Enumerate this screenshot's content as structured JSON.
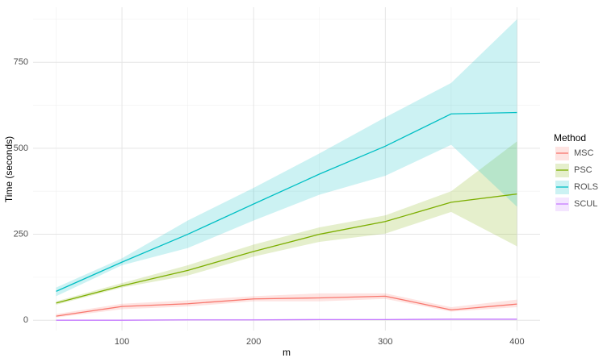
{
  "chart_data": {
    "type": "line",
    "x_label": "m",
    "y_label": "Time (seconds)",
    "legend_title": "Method",
    "x": [
      50,
      100,
      150,
      200,
      250,
      300,
      350,
      400
    ],
    "series": [
      {
        "name": "MSC",
        "color": "#F8766D",
        "values": [
          12,
          40,
          48,
          62,
          65,
          70,
          30,
          47
        ],
        "upper": [
          18,
          48,
          58,
          70,
          78,
          78,
          38,
          60
        ],
        "lower": [
          8,
          32,
          40,
          55,
          55,
          62,
          25,
          38
        ]
      },
      {
        "name": "PSC",
        "color": "#7CAE00",
        "values": [
          50,
          100,
          145,
          200,
          250,
          287,
          343,
          367
        ],
        "upper": [
          55,
          108,
          160,
          220,
          270,
          305,
          375,
          520
        ],
        "lower": [
          45,
          95,
          130,
          185,
          228,
          252,
          315,
          215
        ]
      },
      {
        "name": "ROLS",
        "color": "#00BFC4",
        "values": [
          84,
          169,
          250,
          338,
          425,
          506,
          600,
          604
        ],
        "upper": [
          95,
          180,
          290,
          385,
          485,
          590,
          690,
          875
        ],
        "lower": [
          70,
          160,
          210,
          290,
          365,
          420,
          510,
          330
        ]
      },
      {
        "name": "SCUL",
        "color": "#C77CFF",
        "values": [
          0,
          0,
          1,
          1,
          2,
          2,
          3,
          3
        ],
        "upper": [
          2,
          2,
          3,
          3,
          4,
          4,
          5,
          5
        ],
        "lower": [
          -1,
          -1,
          0,
          0,
          1,
          1,
          2,
          2
        ]
      }
    ],
    "xlim": [
      32.5,
      417.5
    ],
    "xticks": [
      100,
      200,
      300,
      400
    ],
    "ylim": [
      -30,
      910
    ],
    "yticks": [
      0,
      250,
      500,
      750
    ],
    "grid": true,
    "legend_position": "right"
  }
}
